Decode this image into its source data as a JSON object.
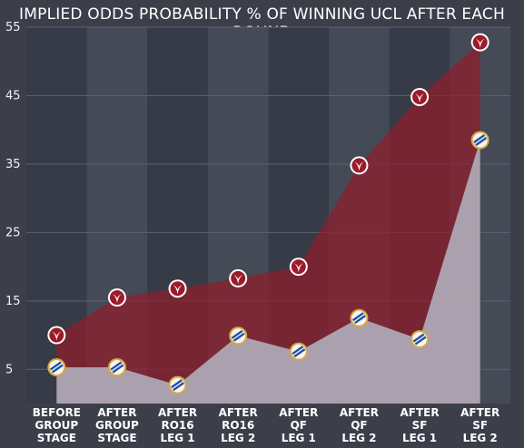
{
  "chart_data": {
    "type": "area",
    "title": "IMPLIED ODDS PROBABILITY % OF WINNING UCL AFTER EACH ROUND",
    "xlabel": "",
    "ylabel": "",
    "categories": [
      [
        "BEFORE",
        "GROUP",
        "STAGE"
      ],
      [
        "AFTER",
        "GROUP",
        "STAGE"
      ],
      [
        "AFTER",
        "RO16",
        "LEG 1"
      ],
      [
        "AFTER",
        "RO16",
        "LEG 2"
      ],
      [
        "AFTER",
        "QF",
        "LEG 1"
      ],
      [
        "AFTER",
        "QF",
        "LEG 2"
      ],
      [
        "AFTER",
        "SF",
        "LEG 1"
      ],
      [
        "AFTER",
        "SF",
        "LEG 2"
      ]
    ],
    "yticks": [
      5,
      15,
      25,
      35,
      45,
      55
    ],
    "ylim": [
      0,
      55
    ],
    "grid": "horizontal",
    "series": [
      {
        "values": [
          10,
          15.5,
          16.8,
          18.3,
          20,
          34.8,
          44.8,
          52.8
        ],
        "color": "#8e1f2c",
        "marker": "red-crest-icon"
      },
      {
        "values": [
          5.3,
          5.3,
          2.7,
          9.9,
          7.6,
          12.5,
          9.4,
          38.5
        ],
        "color": "#b8bfcc",
        "marker": "blue-crest-icon"
      }
    ]
  }
}
